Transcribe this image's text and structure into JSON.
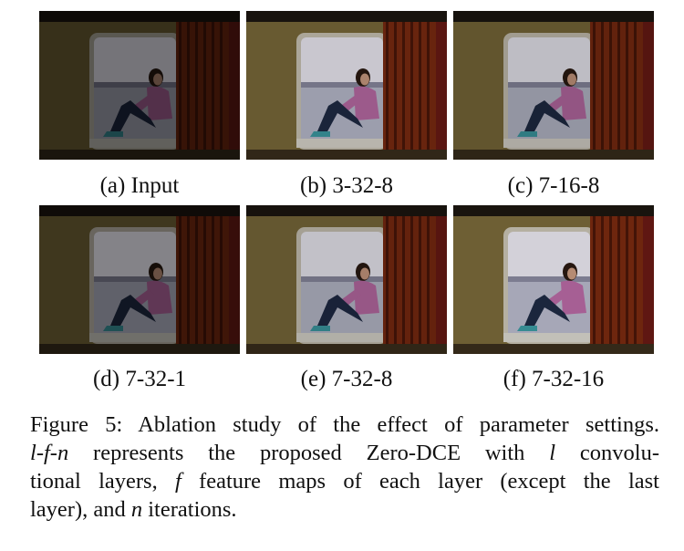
{
  "figure": {
    "panels": [
      {
        "id": "a",
        "label": "(a) Input",
        "brightness": 0.45
      },
      {
        "id": "b",
        "label": "(b) 3-32-8",
        "brightness": 0.85
      },
      {
        "id": "c",
        "label": "(c) 7-16-8",
        "brightness": 0.8
      },
      {
        "id": "d",
        "label": "(d) 7-32-1",
        "brightness": 0.52
      },
      {
        "id": "e",
        "label": "(e) 7-32-8",
        "brightness": 0.82
      },
      {
        "id": "f",
        "label": "(f) 7-32-16",
        "brightness": 0.9
      }
    ],
    "caption": {
      "line1": "Figure 5: Ablation study of the effect of parameter settings.",
      "l": "l",
      "dash1": "-",
      "f": "f",
      "dash2": "-",
      "n": "n",
      "line2_rest": " represents the proposed Zero-DCE with ",
      "line2_l": "l",
      "line2_end": " convolu-",
      "line3_start": "tional layers, ",
      "line3_f": "f",
      "line3_end": " feature maps of each layer (except the last",
      "line4_start": "layer), and ",
      "line4_n": "n",
      "line4_end": " iterations."
    }
  }
}
